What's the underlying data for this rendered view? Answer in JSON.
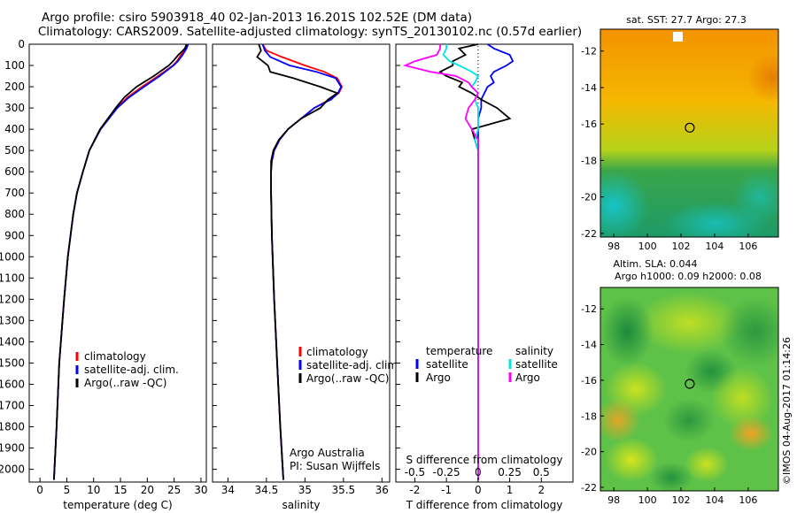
{
  "header": {
    "line1": "Argo profile: csiro 5903918_40 02-Jan-2013 16.201S 102.52E (DM data)",
    "line2": "Climatology: CARS2009. Satellite-adjusted climatology: synTS_20130102.nc (0.57d earlier)"
  },
  "timestamp": "©IMOS 04-Aug-2017 01:14:26",
  "colors": {
    "climatology": "#ff0000",
    "satellite": "#0000ff",
    "argo": "#000000",
    "cyan": "#00e5e5",
    "magenta": "#ff00ff"
  },
  "chart_data": [
    {
      "type": "line",
      "id": "temperature",
      "xlabel": "temperature (deg C)",
      "ylabel": "",
      "xlim": [
        -2,
        31
      ],
      "ylim": [
        2060,
        0
      ],
      "xticks": [
        0,
        5,
        10,
        15,
        20,
        25,
        30
      ],
      "yticks": [
        0,
        100,
        200,
        300,
        400,
        500,
        600,
        700,
        800,
        900,
        1000,
        1100,
        1200,
        1300,
        1400,
        1500,
        1600,
        1700,
        1800,
        1900,
        2000
      ],
      "legend": [
        "climatology",
        "satellite-adj. clim.",
        "Argo(..raw -QC)"
      ],
      "depth": [
        0,
        20,
        50,
        80,
        100,
        150,
        200,
        250,
        300,
        400,
        500,
        600,
        700,
        800,
        1000,
        1200,
        1500,
        1800,
        2050
      ],
      "series": [
        {
          "name": "climatology",
          "values": [
            27.3,
            27.1,
            26.3,
            25.5,
            24.8,
            22.0,
            19.0,
            16.3,
            14.3,
            11.3,
            9.2,
            8.0,
            6.9,
            6.2,
            5.2,
            4.5,
            3.6,
            3.1,
            2.6
          ]
        },
        {
          "name": "satellite-adj. clim.",
          "values": [
            27.6,
            27.3,
            26.6,
            25.7,
            24.9,
            22.3,
            19.4,
            16.6,
            14.4,
            11.3,
            9.2,
            8.0,
            6.9,
            6.2,
            5.2,
            4.5,
            3.6,
            3.1,
            2.6
          ]
        },
        {
          "name": "Argo(..raw -QC)",
          "values": [
            27.3,
            27.0,
            25.8,
            24.8,
            24.0,
            21.2,
            18.0,
            15.7,
            14.1,
            11.2,
            9.2,
            8.0,
            6.9,
            6.2,
            5.2,
            4.5,
            3.6,
            3.1,
            2.6
          ]
        }
      ]
    },
    {
      "type": "line",
      "id": "salinity",
      "xlabel": "salinity",
      "xlim": [
        33.8,
        36.1
      ],
      "ylim": [
        2060,
        0
      ],
      "xticks": [
        34,
        34.5,
        35,
        35.5,
        36
      ],
      "legend": [
        "climatology",
        "satellite-adj. clim.",
        "Argo(..raw -QC)"
      ],
      "annotation": [
        "Argo Australia",
        "PI: Susan Wijffels"
      ],
      "depth": [
        0,
        30,
        60,
        100,
        130,
        160,
        200,
        230,
        260,
        300,
        350,
        400,
        450,
        500,
        550,
        600,
        700,
        900,
        1200,
        1500,
        1800,
        2050
      ],
      "series": [
        {
          "name": "climatology",
          "values": [
            34.45,
            34.5,
            34.7,
            35.0,
            35.25,
            35.42,
            35.48,
            35.44,
            35.32,
            35.12,
            34.95,
            34.78,
            34.67,
            34.6,
            34.57,
            34.56,
            34.56,
            34.57,
            34.6,
            34.64,
            34.68,
            34.72
          ]
        },
        {
          "name": "satellite-adj. clim.",
          "values": [
            34.45,
            34.48,
            34.55,
            34.8,
            35.15,
            35.4,
            35.47,
            35.43,
            35.34,
            35.12,
            34.95,
            34.78,
            34.67,
            34.6,
            34.57,
            34.56,
            34.56,
            34.57,
            34.6,
            34.64,
            34.68,
            34.72
          ]
        },
        {
          "name": "Argo(..raw -QC)",
          "values": [
            34.4,
            34.43,
            34.38,
            34.52,
            34.55,
            34.85,
            35.2,
            35.42,
            35.3,
            35.2,
            34.95,
            34.78,
            34.66,
            34.59,
            34.56,
            34.56,
            34.56,
            34.57,
            34.6,
            34.64,
            34.68,
            34.72
          ]
        }
      ]
    },
    {
      "type": "line",
      "id": "difference",
      "xlabel": "T difference from climatology",
      "top_label": "S difference from climatology",
      "xlim": [
        -2.6,
        3.0
      ],
      "ylim": [
        2060,
        0
      ],
      "xticks": [
        -2,
        -1,
        0,
        1,
        2
      ],
      "sticks": [
        "-0.5",
        "-0.25",
        "0",
        "0.25",
        "0.5"
      ],
      "legend": {
        "temperature": [
          "satellite",
          "Argo"
        ],
        "salinity": [
          "satellite",
          "Argo"
        ],
        "headers": [
          "temperature",
          "salinity"
        ]
      },
      "depth": [
        0,
        20,
        50,
        80,
        100,
        130,
        150,
        180,
        200,
        230,
        260,
        300,
        350,
        400,
        450,
        500,
        600,
        800,
        1200,
        1600,
        2050
      ],
      "series": [
        {
          "name": "temperature satellite",
          "values": [
            0.3,
            0.5,
            1.0,
            1.1,
            0.9,
            0.5,
            0.4,
            0.5,
            0.3,
            0.2,
            0.1,
            0.1,
            0.0,
            0.0,
            0.0,
            0.0,
            0.0,
            0.0,
            0.0,
            0.0,
            0.0
          ]
        },
        {
          "name": "temperature Argo",
          "values": [
            0.0,
            -0.6,
            -0.4,
            -0.8,
            -0.8,
            -1.2,
            -1.0,
            -0.5,
            -0.6,
            -0.2,
            0.1,
            0.6,
            1.0,
            -0.2,
            -0.1,
            0.0,
            0.0,
            0.0,
            0.0,
            0.0,
            0.0
          ]
        },
        {
          "name": "salinity satellite",
          "values": [
            -1.0,
            -1.0,
            -1.1,
            -0.9,
            -0.6,
            -0.2,
            0.0,
            -0.1,
            -0.2,
            0.0,
            -0.1,
            0.0,
            0.0,
            0.0,
            -0.1,
            0.0,
            0.0,
            0.0,
            0.0,
            0.0,
            0.0
          ]
        },
        {
          "name": "salinity Argo",
          "values": [
            -1.2,
            -1.2,
            -1.3,
            -2.0,
            -2.3,
            -1.5,
            -0.7,
            -0.3,
            -0.2,
            0.0,
            -0.1,
            -0.3,
            -0.4,
            -0.2,
            0.0,
            0.0,
            0.0,
            0.0,
            0.0,
            0.0,
            0.0
          ]
        }
      ]
    },
    {
      "type": "heatmap",
      "id": "sst-map",
      "title": "sat. SST: 27.7  Argo: 27.3",
      "xlim": [
        97.2,
        107.8
      ],
      "ylim": [
        -22.2,
        -10.8
      ],
      "xticks": [
        "98",
        "100",
        "102",
        "104",
        "106"
      ],
      "yticks": [
        "-12",
        "-14",
        "-16",
        "-18",
        "-20",
        "-22"
      ],
      "marker": {
        "lon": 102.52,
        "lat": -16.201
      }
    },
    {
      "type": "heatmap",
      "id": "sla-map",
      "title": "Altim. SLA: 0.044",
      "subtitle": "Argo h1000: 0.09 h2000: 0.08",
      "xlim": [
        97.2,
        107.8
      ],
      "ylim": [
        -22.2,
        -10.8
      ],
      "xticks": [
        "98",
        "100",
        "102",
        "104",
        "106"
      ],
      "yticks": [
        "-12",
        "-14",
        "-16",
        "-18",
        "-20",
        "-22"
      ],
      "marker": {
        "lon": 102.52,
        "lat": -16.201
      }
    }
  ]
}
